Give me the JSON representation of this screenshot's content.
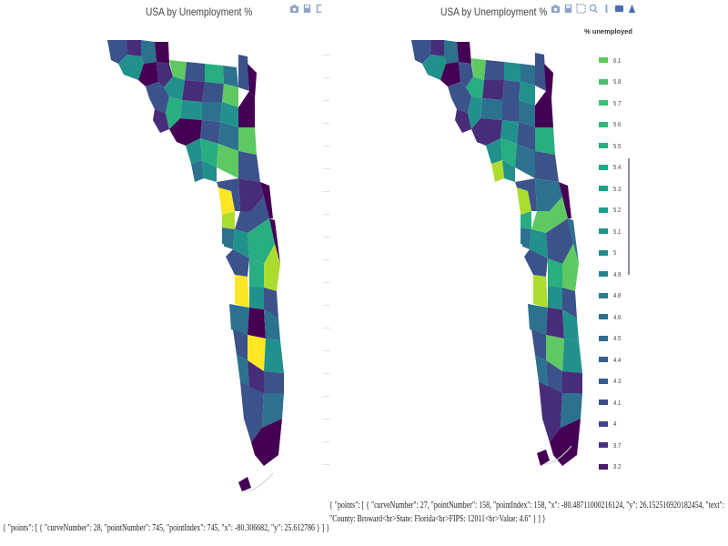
{
  "charts": [
    {
      "id": "left",
      "title": "USA by Unemployment %",
      "modebar": [
        "camera-icon",
        "save-icon",
        "zoom-icon"
      ]
    },
    {
      "id": "right",
      "title": "USA by Unemployment %",
      "modebar": [
        "camera-icon",
        "save-icon",
        "zoom-icon",
        "pan-icon",
        "lasso-icon",
        "select-icon",
        "plotly-logo-icon"
      ],
      "legend": {
        "title": "% unemployed",
        "items": [
          "6.1",
          "5.8",
          "5.7",
          "5.6",
          "5.5",
          "5.4",
          "5.3",
          "5.2",
          "5.1",
          "5",
          "4.9",
          "4.8",
          "4.6",
          "4.5",
          "4.4",
          "4.3",
          "4.1",
          "4",
          "3.7",
          "3.2"
        ],
        "colors": [
          "#5ec962",
          "#4ac16d",
          "#3dbc74",
          "#31b57b",
          "#29af7f",
          "#22a884",
          "#1fa188",
          "#1e9b8a",
          "#21918c",
          "#23898e",
          "#26828e",
          "#287c8e",
          "#2c718e",
          "#306a8e",
          "#33638d",
          "#375b8d",
          "#3e4c8a",
          "#414487",
          "#46307e",
          "#481a6c"
        ]
      }
    }
  ],
  "chart_data": {
    "type": "choropleth",
    "region": "Florida counties",
    "colorscale": "Viridis",
    "value_label": "% unemployed",
    "legend_values": [
      6.1,
      5.8,
      5.7,
      5.6,
      5.5,
      5.4,
      5.3,
      5.2,
      5.1,
      5,
      4.9,
      4.8,
      4.6,
      4.5,
      4.4,
      4.3,
      4.1,
      4,
      3.7,
      3.2
    ]
  },
  "outputs": {
    "left": "{ \"points\": [ { \"curveNumber\": 28, \"pointNumber\": 745, \"pointIndex\": 745, \"x\": -80.306682, \"y\": 25.612786 } ] }",
    "right": "{ \"points\": [ { \"curveNumber\": 27, \"pointNumber\": 158, \"pointIndex\": 158, \"x\": -80.48711000216124, \"y\": 26.152516920182454, \"text\": \"County: Broward<br>State: Florida<br>FIPS: 12011<br>Value: 4.6\" } ] }"
  },
  "colors": {
    "dark_purple": "#440154",
    "purple": "#472c7a",
    "blue": "#3b528b",
    "teal_blue": "#2c728e",
    "teal": "#21918c",
    "green_teal": "#28ae80",
    "green": "#5ec962",
    "yellow_green": "#addc30",
    "yellow": "#fde725"
  }
}
